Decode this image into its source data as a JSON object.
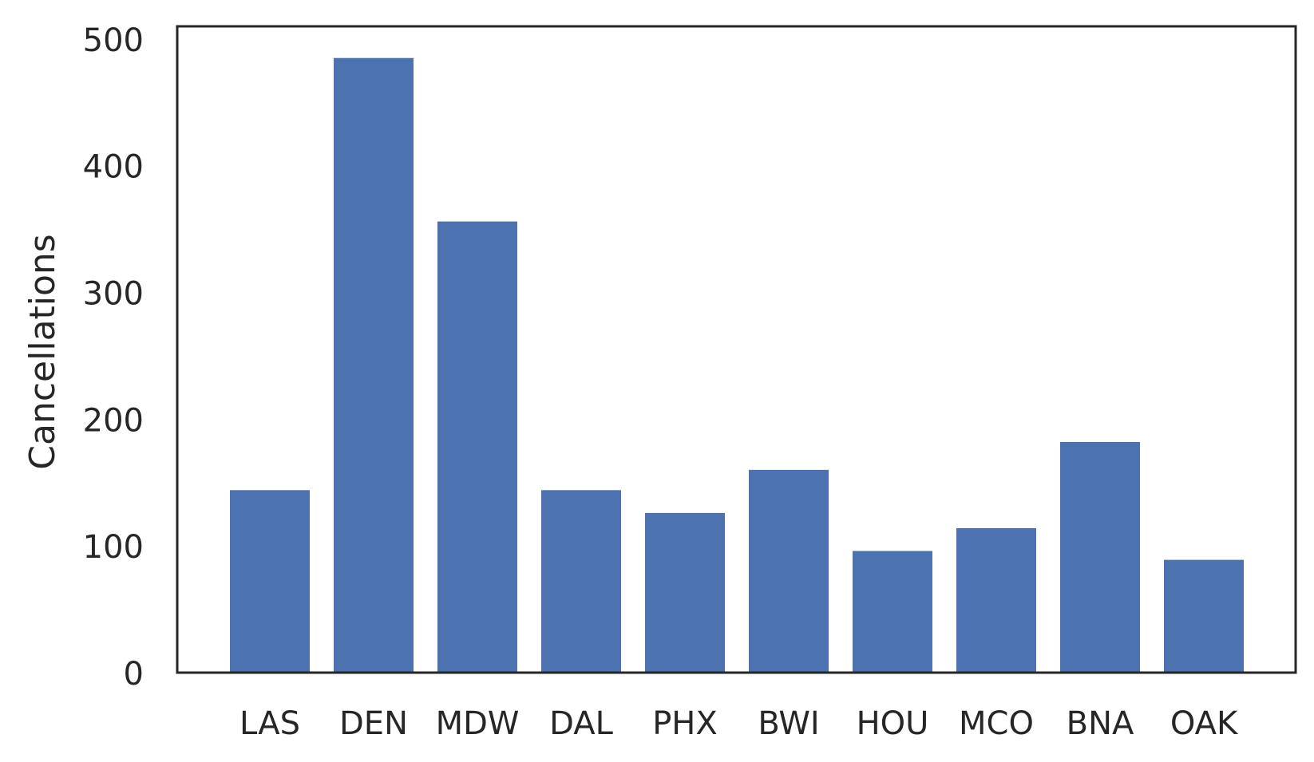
{
  "chart_data": {
    "type": "bar",
    "title": "",
    "xlabel": "",
    "ylabel": "Cancellations",
    "categories": [
      "LAS",
      "DEN",
      "MDW",
      "DAL",
      "PHX",
      "BWI",
      "HOU",
      "MCO",
      "BNA",
      "OAK"
    ],
    "values": [
      144,
      485,
      356,
      144,
      126,
      160,
      96,
      114,
      182,
      89
    ],
    "ylim": [
      0,
      510
    ],
    "yticks": [
      0,
      100,
      200,
      300,
      400,
      500
    ],
    "grid": false,
    "legend": "none",
    "bar_color": "#4c72b0",
    "axis_color": "#262626"
  }
}
